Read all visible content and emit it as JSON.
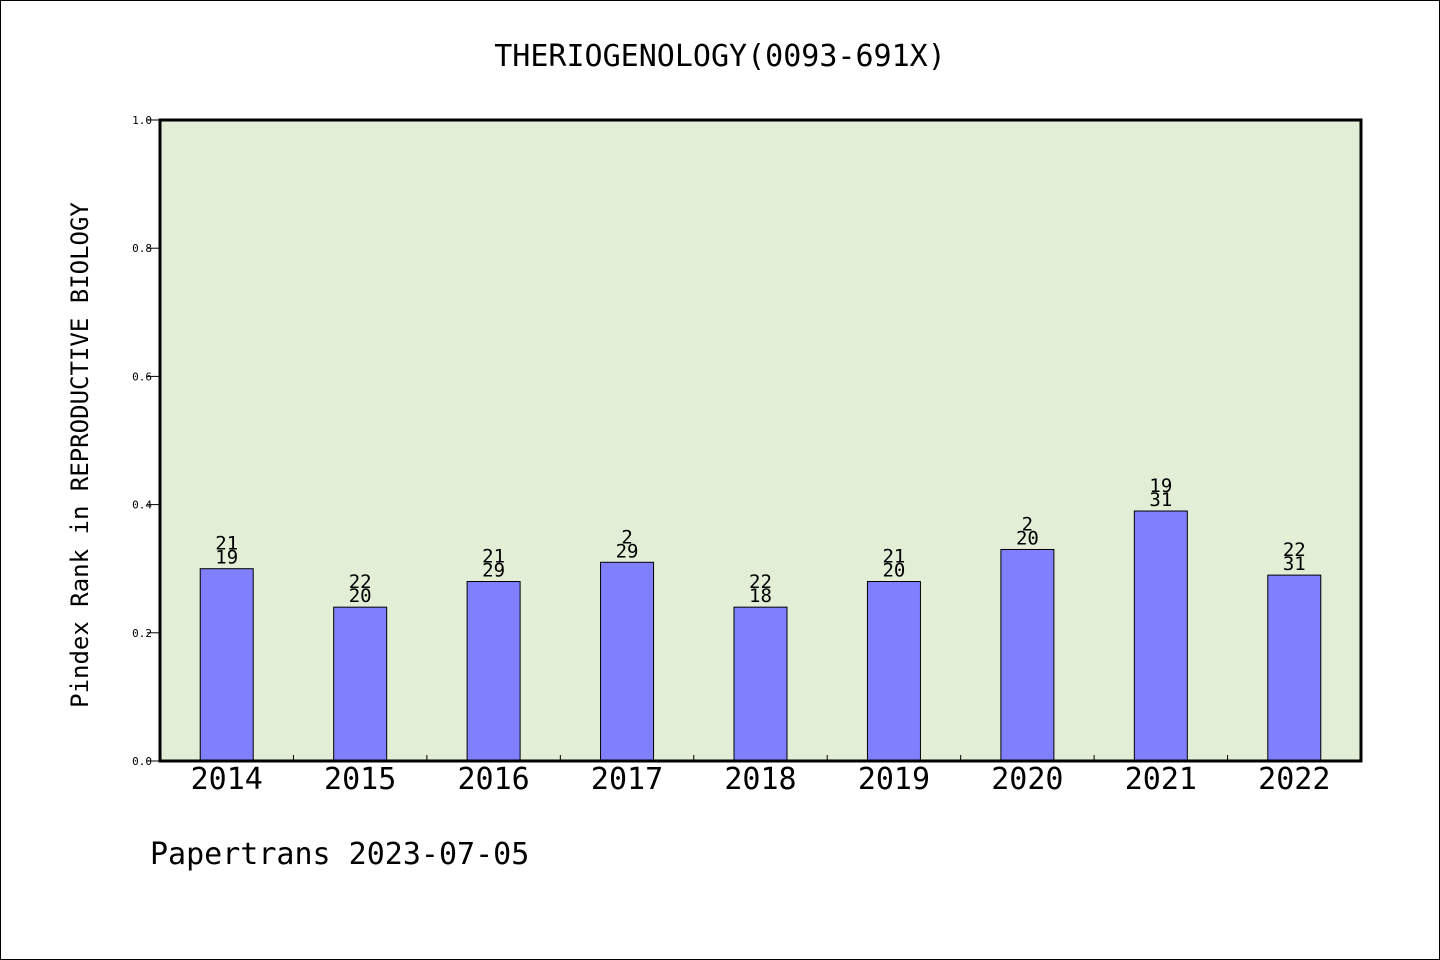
{
  "chart_data": {
    "type": "bar",
    "title": "THERIOGENOLOGY(0093-691X)",
    "ylabel": "Pindex Rank in REPRODUCTIVE BIOLOGY",
    "xlabel": "",
    "categories": [
      "2014",
      "2015",
      "2016",
      "2017",
      "2018",
      "2019",
      "2020",
      "2021",
      "2022"
    ],
    "values": [
      0.3,
      0.24,
      0.28,
      0.31,
      0.24,
      0.28,
      0.33,
      0.39,
      0.29
    ],
    "label_top": [
      "21",
      "22",
      "21",
      "2",
      "22",
      "21",
      "2",
      "19",
      "22"
    ],
    "label_bottom": [
      "19",
      "20",
      "29",
      "29",
      "18",
      "20",
      "20",
      "31",
      "31"
    ],
    "ylim": [
      0,
      1.0
    ],
    "yticks": [
      "0.0",
      "0.2",
      "0.4",
      "0.6",
      "0.8",
      "1.0"
    ],
    "grid": false,
    "colors": {
      "plot_bg": "#e2efd6",
      "bar": "#8080ff",
      "axis": "#000000"
    }
  },
  "footer": "Papertrans 2023-07-05"
}
